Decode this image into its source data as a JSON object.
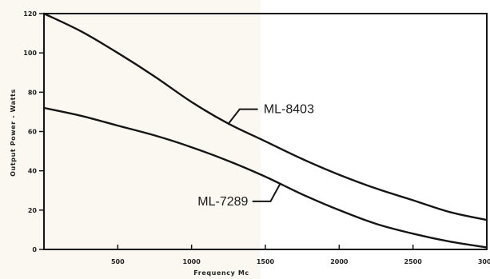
{
  "chart_data": {
    "type": "line",
    "title": "",
    "xlabel": "Frequency Mc",
    "ylabel": "Output Power - Watts",
    "xlim": [
      0,
      3000
    ],
    "ylim": [
      0,
      120
    ],
    "x_ticks": [
      500,
      1000,
      1500,
      2000,
      2500,
      3000
    ],
    "x_tick_labels": [
      "500",
      "1000",
      "1500",
      "2000",
      "2500",
      "3000"
    ],
    "y_ticks": [
      0,
      20,
      40,
      60,
      80,
      100,
      120
    ],
    "y_tick_labels": [
      "0",
      "20",
      "40",
      "60",
      "80",
      "100",
      "120"
    ],
    "grid": false,
    "series": [
      {
        "name": "ML-8403",
        "x": [
          0,
          250,
          500,
          750,
          1000,
          1250,
          1500,
          1750,
          2000,
          2250,
          2500,
          2750,
          3000
        ],
        "y": [
          120,
          111,
          100,
          88,
          75,
          64,
          55,
          46,
          38,
          31,
          25,
          19,
          15
        ]
      },
      {
        "name": "ML-7289",
        "x": [
          0,
          250,
          500,
          750,
          1000,
          1250,
          1500,
          1750,
          2000,
          2250,
          2500,
          2750,
          3000
        ],
        "y": [
          72,
          68,
          63,
          58,
          52,
          45,
          37,
          28,
          20,
          13,
          8,
          4,
          1
        ]
      }
    ],
    "annotations": [
      {
        "text": "ML-8403",
        "series": "ML-8403",
        "anchor_x": 1250
      },
      {
        "text": "ML-7289",
        "series": "ML-7289",
        "anchor_x": 1600
      }
    ]
  }
}
